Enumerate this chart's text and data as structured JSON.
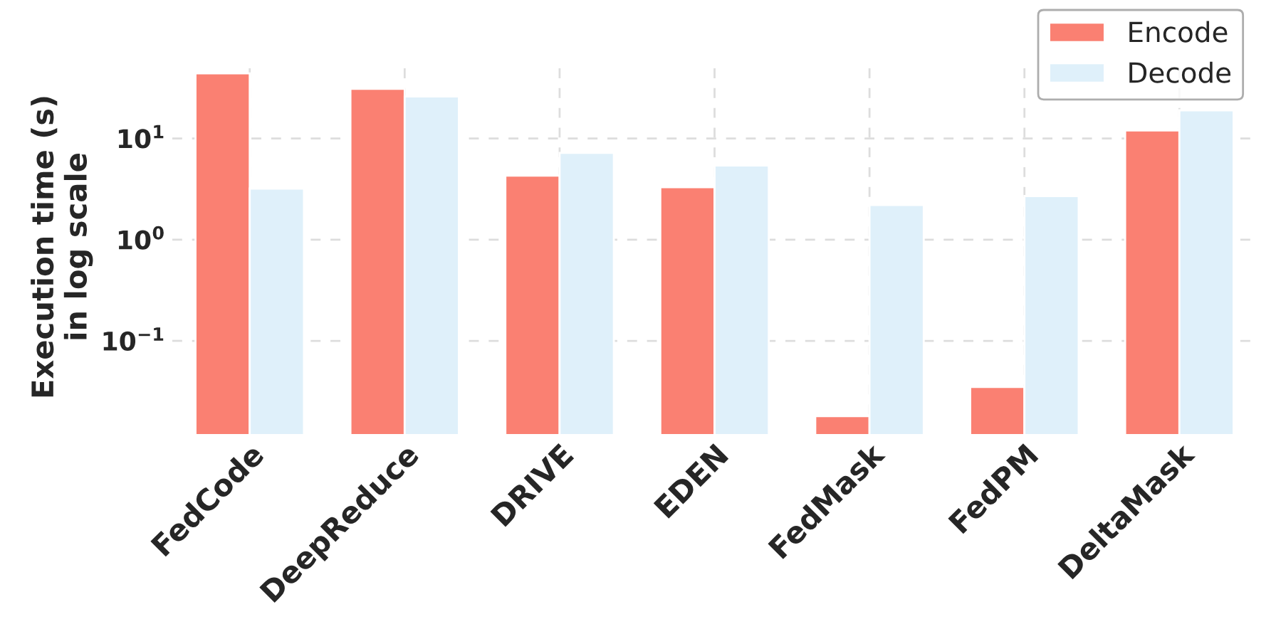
{
  "chart_data": {
    "type": "bar",
    "ylabel": "Execution time (s)\nin log scale",
    "categories": [
      "FedCode",
      "DeepReduce",
      "DRIVE",
      "EDEN",
      "FedMask",
      "FedPM",
      "DeltaMask"
    ],
    "series": [
      {
        "name": "Encode",
        "color": "#fa8072",
        "values": [
          44,
          31,
          4.3,
          3.3,
          0.018,
          0.035,
          12
        ]
      },
      {
        "name": "Decode",
        "color": "#dff0fa",
        "values": [
          3.2,
          26,
          7.2,
          5.4,
          2.2,
          2.7,
          19
        ]
      }
    ],
    "log": true,
    "ylim": [
      0.012,
      60
    ],
    "yticks": [
      {
        "value": 0.1,
        "label": "10$^{−1}$"
      },
      {
        "value": 1,
        "label": "10$^{0}$"
      },
      {
        "value": 10,
        "label": "10$^{1}$"
      }
    ],
    "grid": true,
    "legend": "top right"
  }
}
